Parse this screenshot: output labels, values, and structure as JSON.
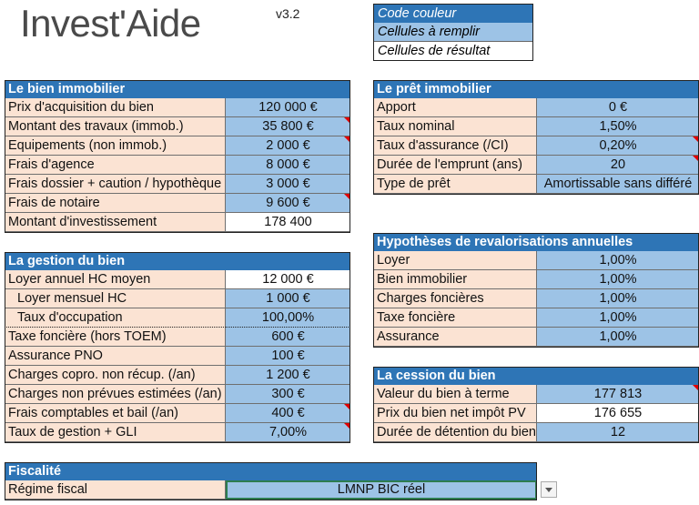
{
  "logo": "Invest'Aide",
  "version": "v3.2",
  "legend": {
    "title": "Code couleur",
    "items": [
      "Cellules à remplir",
      "Cellules de résultat"
    ]
  },
  "sections": [
    {
      "title": "Le bien immobilier",
      "rows": [
        [
          "Prix d'acquisition du bien",
          "120 000 €"
        ],
        [
          "Montant des travaux (immob.)",
          "35 800 €"
        ],
        [
          "Equipements (non immob.)",
          "2 000 €"
        ],
        [
          "Frais d'agence",
          "8 000 €"
        ],
        [
          "Frais dossier + caution / hypothèque",
          "3 000 €"
        ],
        [
          "Frais de notaire",
          "9 600 €"
        ],
        [
          "Montant d'investissement",
          "178 400"
        ]
      ]
    },
    {
      "title": "La gestion du bien",
      "rows": [
        [
          "Loyer annuel HC moyen",
          "12 000 €"
        ],
        [
          "Loyer mensuel HC",
          "1 000 €"
        ],
        [
          "Taux d'occupation",
          "100,00%"
        ],
        [
          "Taxe foncière (hors TOEM)",
          "600 €"
        ],
        [
          "Assurance PNO",
          "100 €"
        ],
        [
          "Charges copro. non récup. (/an)",
          "1 200 €"
        ],
        [
          "Charges non prévues estimées (/an)",
          "300 €"
        ],
        [
          "Frais comptables et bail (/an)",
          "400 €"
        ],
        [
          "Taux de gestion + GLI",
          "7,00%"
        ]
      ]
    },
    {
      "title": "Le prêt immobilier",
      "rows": [
        [
          "Apport",
          "0 €"
        ],
        [
          "Taux nominal",
          "1,50%"
        ],
        [
          "Taux d'assurance (/CI)",
          "0,20%"
        ],
        [
          "Durée de l'emprunt (ans)",
          "20"
        ],
        [
          "Type de prêt",
          "Amortissable sans différé"
        ]
      ]
    },
    {
      "title": "Hypothèses de revalorisations annuelles",
      "rows": [
        [
          "Loyer",
          "1,00%"
        ],
        [
          "Bien immobilier",
          "1,00%"
        ],
        [
          "Charges foncières",
          "1,00%"
        ],
        [
          "Taxe foncière",
          "1,00%"
        ],
        [
          "Assurance",
          "1,00%"
        ]
      ]
    },
    {
      "title": "La cession du bien",
      "rows": [
        [
          "Valeur du bien à terme",
          "177 813"
        ],
        [
          "Prix du bien net impôt PV",
          "176 655"
        ],
        [
          "Durée de détention du bien",
          "12"
        ]
      ]
    },
    {
      "title": "Fiscalité",
      "rows": [
        [
          "Régime fiscal",
          "LMNP BIC réel"
        ]
      ]
    }
  ]
}
